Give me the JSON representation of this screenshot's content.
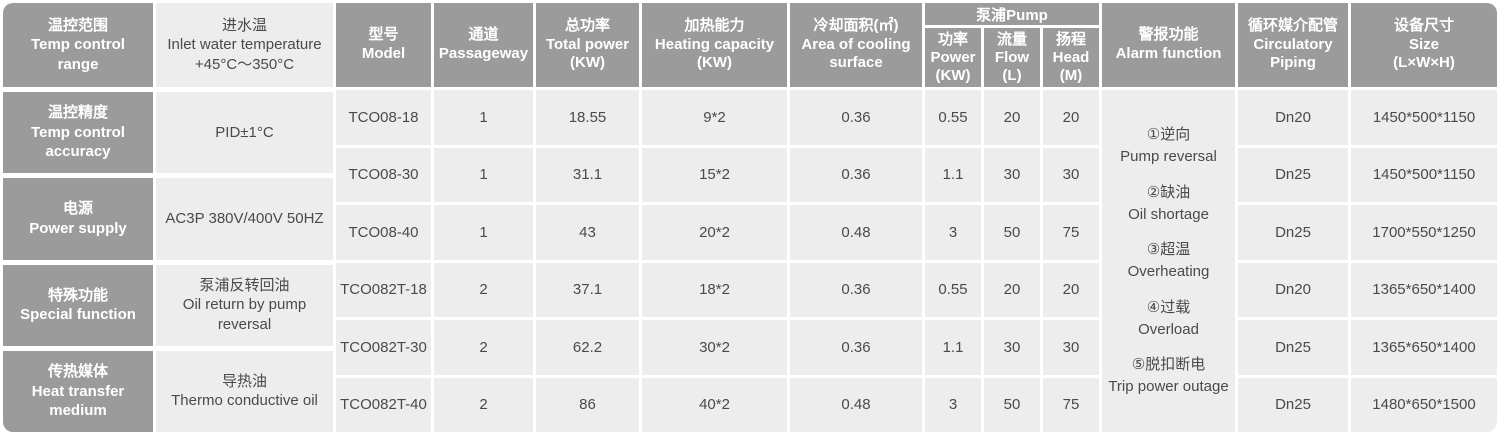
{
  "colors": {
    "header_bg": "#9b9b9b",
    "cell_bg": "#ededed",
    "header_text": "#ffffff",
    "body_text": "#4a4a4a"
  },
  "left_panel": {
    "rows": [
      {
        "label_zh": "温控范围",
        "label_en": "Temp control range",
        "value_lines": [
          "进水温",
          "Inlet water temperature",
          "+45°C～350°C"
        ]
      },
      {
        "label_zh": "温控精度",
        "label_en": "Temp control accuracy",
        "value_lines": [
          "PID±1°C"
        ]
      },
      {
        "label_zh": "电源",
        "label_en": "Power supply",
        "value_lines": [
          "AC3P 380V/400V 50HZ"
        ]
      },
      {
        "label_zh": "特殊功能",
        "label_en": "Special function",
        "value_lines": [
          "泵浦反转回油",
          "Oil return by pump reversal"
        ]
      },
      {
        "label_zh": "传热媒体",
        "label_en": "Heat transfer medium",
        "value_lines": [
          "导热油",
          "Thermo conductive oil"
        ]
      }
    ]
  },
  "table": {
    "headers": {
      "model": {
        "zh": "型号",
        "en": "Model"
      },
      "passageway": {
        "zh": "通道",
        "en": "Passageway"
      },
      "total_power": {
        "zh": "总功率",
        "en": "Total power",
        "unit": "(KW)"
      },
      "heating": {
        "zh": "加热能力",
        "en": "Heating capacity",
        "unit": "(KW)"
      },
      "cooling": {
        "zh": "冷却面积(㎡)",
        "en": "Area of cooling surface"
      },
      "pump_group": "泵浦Pump",
      "pump_power": {
        "zh": "功率",
        "en": "Power",
        "unit": "(KW)"
      },
      "pump_flow": {
        "zh": "流量",
        "en": "Flow",
        "unit": "(L)"
      },
      "pump_head": {
        "zh": "扬程",
        "en": "Head",
        "unit": "(M)"
      },
      "alarm": {
        "zh": "警报功能",
        "en": "Alarm function"
      },
      "piping": {
        "zh": "循环媒介配管",
        "en": "Circulatory Piping"
      },
      "size": {
        "zh": "设备尺寸",
        "en": "Size",
        "unit": "(L×W×H)"
      }
    },
    "rows": [
      {
        "model": "TCO08-18",
        "passageway": "1",
        "total_power": "18.55",
        "heating": "9*2",
        "cooling": "0.36",
        "pump_power": "0.55",
        "pump_flow": "20",
        "pump_head": "20",
        "piping": "Dn20",
        "size": "1450*500*1150"
      },
      {
        "model": "TCO08-30",
        "passageway": "1",
        "total_power": "31.1",
        "heating": "15*2",
        "cooling": "0.36",
        "pump_power": "1.1",
        "pump_flow": "30",
        "pump_head": "30",
        "piping": "Dn25",
        "size": "1450*500*1150"
      },
      {
        "model": "TCO08-40",
        "passageway": "1",
        "total_power": "43",
        "heating": "20*2",
        "cooling": "0.48",
        "pump_power": "3",
        "pump_flow": "50",
        "pump_head": "75",
        "piping": "Dn25",
        "size": "1700*550*1250"
      },
      {
        "model": "TCO082T-18",
        "passageway": "2",
        "total_power": "37.1",
        "heating": "18*2",
        "cooling": "0.36",
        "pump_power": "0.55",
        "pump_flow": "20",
        "pump_head": "20",
        "piping": "Dn20",
        "size": "1365*650*1400"
      },
      {
        "model": "TCO082T-30",
        "passageway": "2",
        "total_power": "62.2",
        "heating": "30*2",
        "cooling": "0.36",
        "pump_power": "1.1",
        "pump_flow": "30",
        "pump_head": "30",
        "piping": "Dn25",
        "size": "1365*650*1400"
      },
      {
        "model": "TCO082T-40",
        "passageway": "2",
        "total_power": "86",
        "heating": "40*2",
        "cooling": "0.48",
        "pump_power": "3",
        "pump_flow": "50",
        "pump_head": "75",
        "piping": "Dn25",
        "size": "1480*650*1500"
      }
    ],
    "alarm_items": [
      {
        "zh": "①逆向",
        "en": "Pump reversal"
      },
      {
        "zh": "②缺油",
        "en": "Oil shortage"
      },
      {
        "zh": "③超温",
        "en": "Overheating"
      },
      {
        "zh": "④过载",
        "en": "Overload"
      },
      {
        "zh": "⑤脱扣断电",
        "en": "Trip power outage"
      }
    ]
  }
}
